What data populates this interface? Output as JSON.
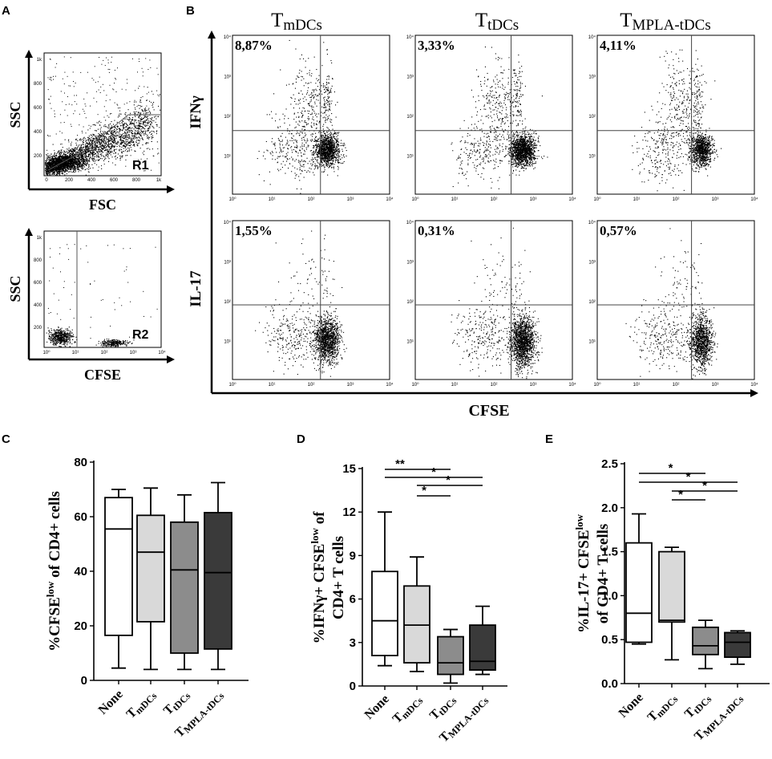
{
  "panel_letters": [
    "A",
    "B",
    "C",
    "D",
    "E"
  ],
  "panel_a": {
    "plots": [
      {
        "xlabel": "FSC",
        "ylabel": "SSC",
        "gate_label": "R1",
        "yticks": [
          "1k",
          "800",
          "600",
          "400",
          "200"
        ],
        "xticks": [
          "0",
          "200",
          "400",
          "600",
          "800",
          "1k"
        ]
      },
      {
        "xlabel": "CFSE",
        "ylabel": "SSC",
        "gate_label": "R2",
        "yticks": [
          "1k",
          "800",
          "600",
          "400",
          "200"
        ],
        "xticks": [
          "10⁰",
          "10¹",
          "10²",
          "10³",
          "10⁴"
        ]
      }
    ]
  },
  "panel_b": {
    "columns": [
      {
        "main": "T",
        "sub": "mDCs"
      },
      {
        "main": "T",
        "sub": "tDCs"
      },
      {
        "main": "T",
        "sub": "MPLA-tDCs"
      }
    ],
    "rows": [
      "IFNγ",
      "IL-17"
    ],
    "percentages": [
      [
        "8,87%",
        "3,33%",
        "4,11%"
      ],
      [
        "1,55%",
        "0,31%",
        "0,57%"
      ]
    ],
    "xlabel": "CFSE",
    "log_ticks": [
      "10⁰",
      "10¹",
      "10²",
      "10³",
      "10⁴"
    ]
  },
  "colors": {
    "box_none": "#ffffff",
    "box_mdcs": "#d9d9d9",
    "box_tdcs": "#8c8c8c",
    "box_mpla": "#3a3a3a",
    "ink": "#000000"
  },
  "chart_data": [
    {
      "type": "box",
      "panel": "C",
      "ylabel_parts": [
        "%CFSE",
        "low",
        " of CD4+ cells"
      ],
      "categories": [
        "None",
        "TmDCs",
        "TtDCs",
        "TMPLA-tDCs"
      ],
      "category_labels": [
        {
          "main": "None",
          "sub": ""
        },
        {
          "main": "T",
          "sub": "mDCs"
        },
        {
          "main": "T",
          "sub": "tDCs"
        },
        {
          "main": "T",
          "sub": "MPLA-tDCs"
        }
      ],
      "ylim": [
        0,
        80
      ],
      "yticks": [
        0,
        20,
        40,
        60,
        80
      ],
      "boxes": [
        {
          "min": 4.5,
          "q1": 16.5,
          "median": 55.5,
          "q3": 67,
          "max": 70
        },
        {
          "min": 4,
          "q1": 21.5,
          "median": 47,
          "q3": 60.5,
          "max": 70.5
        },
        {
          "min": 4,
          "q1": 10,
          "median": 40.5,
          "q3": 58,
          "max": 68
        },
        {
          "min": 4,
          "q1": 11.5,
          "median": 39.5,
          "q3": 61.5,
          "max": 72.5
        }
      ],
      "significance": []
    },
    {
      "type": "box",
      "panel": "D",
      "ylabel_parts": [
        "%IFNγ+ CFSE",
        "low",
        " of",
        "CD4+ T cells"
      ],
      "categories": [
        "None",
        "TmDCs",
        "TtDCs",
        "TMPLA-tDCs"
      ],
      "category_labels": [
        {
          "main": "None",
          "sub": ""
        },
        {
          "main": "T",
          "sub": "mDCs"
        },
        {
          "main": "T",
          "sub": "tDCs"
        },
        {
          "main": "T",
          "sub": "MPLA-tDCs"
        }
      ],
      "ylim": [
        0,
        15
      ],
      "yticks": [
        0,
        3,
        6,
        9,
        12,
        15
      ],
      "boxes": [
        {
          "min": 1.4,
          "q1": 2.1,
          "median": 4.5,
          "q3": 7.9,
          "max": 12
        },
        {
          "min": 1.0,
          "q1": 1.6,
          "median": 4.2,
          "q3": 6.9,
          "max": 8.9
        },
        {
          "min": 0.2,
          "q1": 0.8,
          "median": 1.6,
          "q3": 3.4,
          "max": 3.9
        },
        {
          "min": 0.8,
          "q1": 1.1,
          "median": 1.7,
          "q3": 4.2,
          "max": 5.5
        }
      ],
      "significance": [
        {
          "from": 0,
          "to": 2,
          "label": "**"
        },
        {
          "from": 0,
          "to": 3,
          "label": "*"
        },
        {
          "from": 1,
          "to": 3,
          "label": "*"
        },
        {
          "from": 1,
          "to": 2,
          "label": "*"
        }
      ]
    },
    {
      "type": "box",
      "panel": "E",
      "ylabel_parts": [
        "%IL-17+ CFSE",
        "low",
        "",
        "of CD4+ T cells"
      ],
      "categories": [
        "None",
        "TmDCs",
        "TtDCs",
        "TMPLA-tDCs"
      ],
      "category_labels": [
        {
          "main": "None",
          "sub": ""
        },
        {
          "main": "T",
          "sub": "mDCs"
        },
        {
          "main": "T",
          "sub": "tDCs"
        },
        {
          "main": "T",
          "sub": "MPLA-tDCs"
        }
      ],
      "ylim": [
        0,
        2.5
      ],
      "yticks": [
        0.0,
        0.5,
        1.0,
        1.5,
        2.0,
        2.5
      ],
      "boxes": [
        {
          "min": 0.45,
          "q1": 0.47,
          "median": 0.8,
          "q3": 1.6,
          "max": 1.93
        },
        {
          "min": 0.27,
          "q1": 0.7,
          "median": 0.72,
          "q3": 1.5,
          "max": 1.55
        },
        {
          "min": 0.17,
          "q1": 0.33,
          "median": 0.43,
          "q3": 0.64,
          "max": 0.72
        },
        {
          "min": 0.22,
          "q1": 0.3,
          "median": 0.47,
          "q3": 0.58,
          "max": 0.6
        }
      ],
      "significance": [
        {
          "from": 0,
          "to": 2,
          "label": "*"
        },
        {
          "from": 0,
          "to": 3,
          "label": "*"
        },
        {
          "from": 1,
          "to": 3,
          "label": "*"
        },
        {
          "from": 1,
          "to": 2,
          "label": "*"
        }
      ]
    }
  ]
}
